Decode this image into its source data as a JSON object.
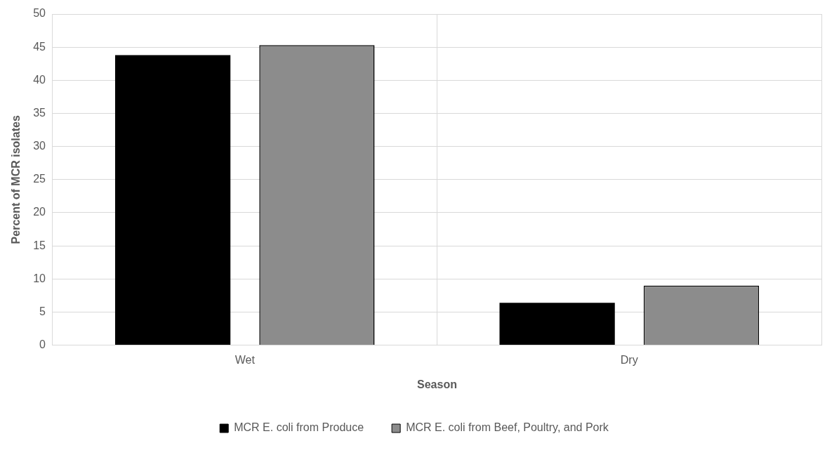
{
  "chart_data": {
    "type": "bar",
    "xlabel": "Season",
    "ylabel": "Percent of MCR isolates",
    "categories": [
      "Wet",
      "Dry"
    ],
    "series": [
      {
        "name": "MCR E. coli from Produce",
        "color": "#000000",
        "values": [
          43.8,
          6.4
        ]
      },
      {
        "name": "MCR E. coli from Beef, Poultry, and Pork",
        "color": "#8c8c8c",
        "values": [
          45.3,
          9.0
        ]
      }
    ],
    "ylim": [
      0,
      50
    ],
    "yticks": [
      0,
      5,
      10,
      15,
      20,
      25,
      30,
      35,
      40,
      45,
      50
    ],
    "grid": true,
    "legend": "bottom"
  }
}
